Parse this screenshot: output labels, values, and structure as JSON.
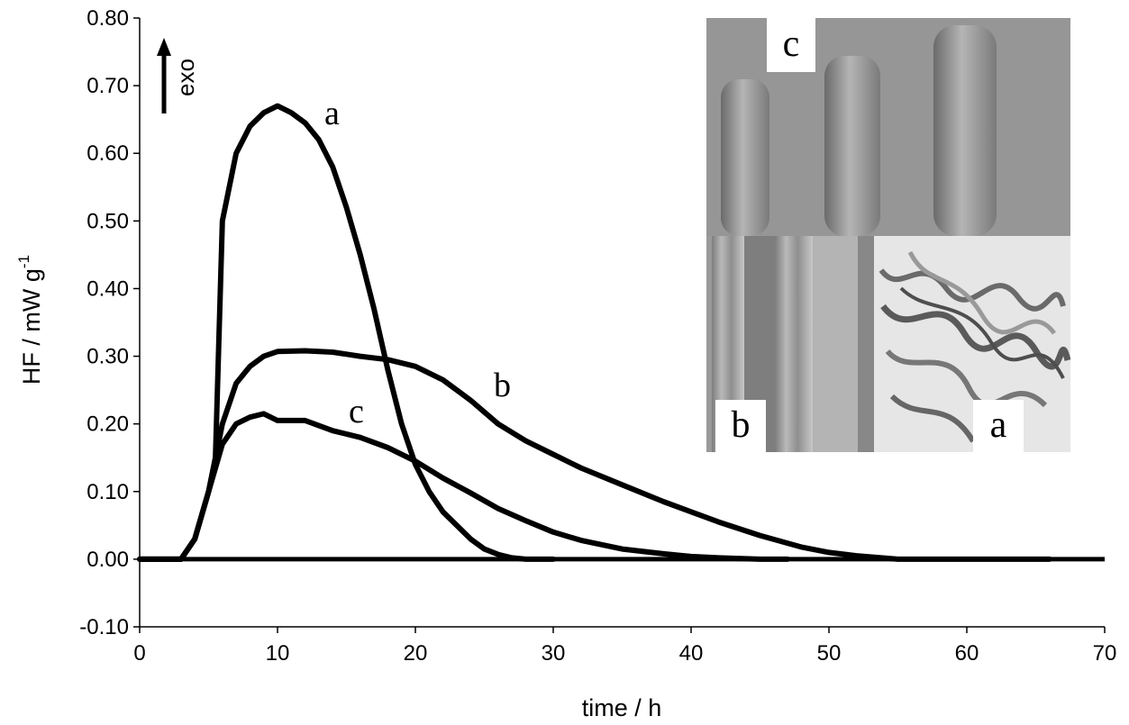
{
  "chart_data": {
    "type": "line",
    "xlabel": "time / h",
    "ylabel_main": "HF / mW g",
    "ylabel_sup": "-1",
    "xlim": [
      0,
      70
    ],
    "ylim": [
      -0.1,
      0.8
    ],
    "x_ticks": [
      "0",
      "10",
      "20",
      "30",
      "40",
      "50",
      "60",
      "70"
    ],
    "y_ticks": [
      "-0.10",
      "0.00",
      "0.10",
      "0.20",
      "0.30",
      "0.40",
      "0.50",
      "0.60",
      "0.70",
      "0.80"
    ],
    "grid": false,
    "legend": "none",
    "annotation": "exo",
    "series": [
      {
        "name": "a",
        "x": [
          0,
          2,
          3,
          4,
          5,
          5.5,
          6,
          7,
          8,
          9,
          10,
          11,
          12,
          13,
          14,
          15,
          16,
          17,
          18,
          19,
          20,
          21,
          22,
          23,
          24,
          25,
          26,
          27,
          28,
          30
        ],
        "y": [
          0.0,
          0.0,
          0.0,
          0.03,
          0.1,
          0.15,
          0.5,
          0.6,
          0.64,
          0.66,
          0.67,
          0.66,
          0.645,
          0.62,
          0.58,
          0.52,
          0.45,
          0.37,
          0.28,
          0.2,
          0.14,
          0.1,
          0.07,
          0.05,
          0.03,
          0.015,
          0.007,
          0.002,
          0.0,
          0.0
        ]
      },
      {
        "name": "b",
        "x": [
          0,
          2,
          3,
          4,
          5,
          6,
          7,
          8,
          9,
          10,
          12,
          14,
          16,
          18,
          20,
          22,
          24,
          26,
          28,
          30,
          32,
          35,
          38,
          40,
          42,
          45,
          48,
          50,
          52,
          55,
          60,
          66
        ],
        "y": [
          0.0,
          0.0,
          0.0,
          0.03,
          0.1,
          0.2,
          0.26,
          0.285,
          0.3,
          0.307,
          0.308,
          0.306,
          0.3,
          0.295,
          0.285,
          0.265,
          0.235,
          0.2,
          0.175,
          0.155,
          0.135,
          0.11,
          0.085,
          0.07,
          0.055,
          0.035,
          0.018,
          0.01,
          0.005,
          0.0,
          0.0,
          0.0
        ]
      },
      {
        "name": "c",
        "x": [
          0,
          2,
          3,
          4,
          5,
          6,
          7,
          8,
          9,
          10,
          12,
          14,
          16,
          18,
          20,
          22,
          24,
          26,
          28,
          30,
          32,
          35,
          38,
          40,
          42,
          45,
          47
        ],
        "y": [
          0.0,
          0.0,
          0.0,
          0.03,
          0.1,
          0.17,
          0.2,
          0.21,
          0.215,
          0.205,
          0.205,
          0.19,
          0.18,
          0.165,
          0.145,
          0.12,
          0.098,
          0.075,
          0.057,
          0.04,
          0.028,
          0.015,
          0.008,
          0.004,
          0.002,
          0.0,
          0.0
        ]
      }
    ],
    "curve_labels": [
      "a",
      "b",
      "c"
    ]
  },
  "inset": {
    "photo_labels": [
      "c",
      "b",
      "a"
    ]
  },
  "colors": {
    "line": "#000000",
    "photo_dark": "#5a5a5a",
    "photo_mid": "#8e8e8e",
    "photo_light": "#c4c4c4"
  }
}
